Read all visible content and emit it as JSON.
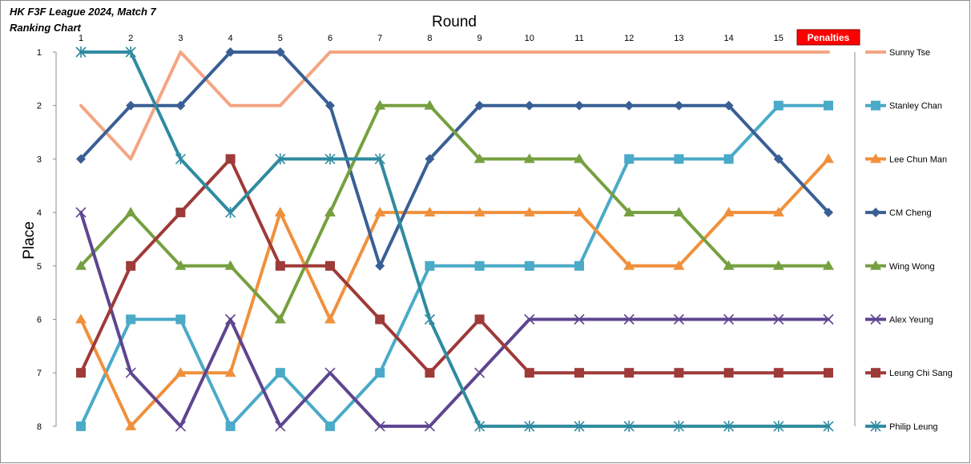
{
  "chart_data": {
    "type": "line",
    "title": "HK F3F League 2024, Match 7",
    "subtitle": "Ranking Chart",
    "xlabel": "Round",
    "ylabel": "Place",
    "categories": [
      "1",
      "2",
      "3",
      "4",
      "5",
      "6",
      "7",
      "8",
      "9",
      "10",
      "11",
      "12",
      "13",
      "14",
      "15",
      "Penalties"
    ],
    "ylim": [
      1,
      8
    ],
    "y_reversed": true,
    "yticks": [
      1,
      2,
      3,
      4,
      5,
      6,
      7,
      8
    ],
    "grid": false,
    "legend_position": "right",
    "penalties_badge_color": "#ff0000",
    "series": [
      {
        "name": "Sunny Tse",
        "color": "#f4a582",
        "marker": "none",
        "values": [
          2,
          3,
          1,
          2,
          2,
          1,
          1,
          1,
          1,
          1,
          1,
          1,
          1,
          1,
          1,
          1
        ]
      },
      {
        "name": "Stanley Chan",
        "color": "#4aaac8",
        "marker": "square",
        "values": [
          8,
          6,
          6,
          8,
          7,
          8,
          7,
          5,
          5,
          5,
          5,
          3,
          3,
          3,
          2,
          2
        ]
      },
      {
        "name": "Lee Chun Man",
        "color": "#f0903c",
        "marker": "triangle",
        "values": [
          6,
          8,
          7,
          7,
          4,
          6,
          4,
          4,
          4,
          4,
          4,
          5,
          5,
          4,
          4,
          3
        ]
      },
      {
        "name": "CM Cheng",
        "color": "#3a5f95",
        "marker": "diamond",
        "values": [
          3,
          2,
          2,
          1,
          1,
          2,
          5,
          3,
          2,
          2,
          2,
          2,
          2,
          2,
          3,
          4
        ]
      },
      {
        "name": "Wing Wong",
        "color": "#76a040",
        "marker": "triangle",
        "values": [
          5,
          4,
          5,
          5,
          6,
          4,
          2,
          2,
          3,
          3,
          3,
          4,
          4,
          5,
          5,
          5
        ]
      },
      {
        "name": "Alex Yeung",
        "color": "#5e4590",
        "marker": "x",
        "values": [
          4,
          7,
          8,
          6,
          8,
          7,
          8,
          8,
          7,
          6,
          6,
          6,
          6,
          6,
          6,
          6
        ]
      },
      {
        "name": "Leung Chi Sang",
        "color": "#9e3a38",
        "marker": "square",
        "values": [
          7,
          5,
          4,
          3,
          5,
          5,
          6,
          7,
          6,
          7,
          7,
          7,
          7,
          7,
          7,
          7
        ]
      },
      {
        "name": "Philip Leung",
        "color": "#2f8ba0",
        "marker": "star",
        "values": [
          1,
          1,
          3,
          4,
          3,
          3,
          3,
          6,
          8,
          8,
          8,
          8,
          8,
          8,
          8,
          8
        ]
      }
    ]
  }
}
